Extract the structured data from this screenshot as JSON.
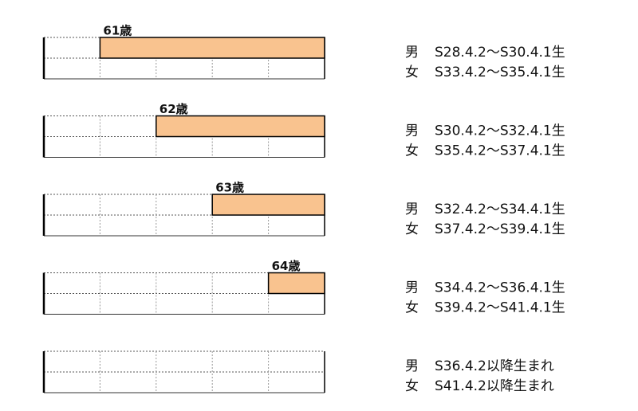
{
  "rows": [
    {
      "age_label": "61歳",
      "male": {
        "sex": "男",
        "period": "S28.4.2～S30.4.1生"
      },
      "female": {
        "sex": "女",
        "period": "S33.4.2～S35.4.1生"
      }
    },
    {
      "age_label": "62歳",
      "male": {
        "sex": "男",
        "period": "S30.4.2～S32.4.1生"
      },
      "female": {
        "sex": "女",
        "period": "S35.4.2～S37.4.1生"
      }
    },
    {
      "age_label": "63歳",
      "male": {
        "sex": "男",
        "period": "S32.4.2～S34.4.1生"
      },
      "female": {
        "sex": "女",
        "period": "S37.4.2～S39.4.1生"
      }
    },
    {
      "age_label": "64歳",
      "male": {
        "sex": "男",
        "period": "S34.4.2～S36.4.1生"
      },
      "female": {
        "sex": "女",
        "period": "S39.4.2～S41.4.1生"
      }
    },
    {
      "male": {
        "sex": "男",
        "period": "S36.4.2以降生まれ"
      },
      "female": {
        "sex": "女",
        "period": "S41.4.2以降生まれ"
      }
    }
  ]
}
